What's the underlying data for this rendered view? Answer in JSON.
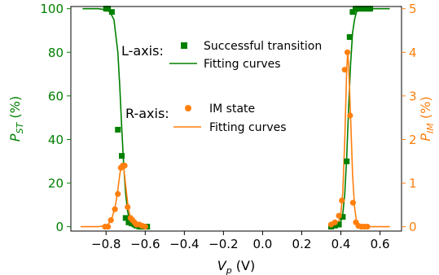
{
  "chart_data": {
    "type": "scatter",
    "x": {
      "label_var": "V",
      "label_sub": "p",
      "label_unit": " (V)",
      "range": [
        -0.98,
        0.71
      ],
      "ticks": [
        -0.8,
        -0.6,
        -0.4,
        -0.2,
        0.0,
        0.2,
        0.4,
        0.6
      ],
      "tick_labels": [
        "−0.8",
        "−0.6",
        "−0.4",
        "−0.2",
        "0.0",
        "0.2",
        "0.4",
        "0.6"
      ]
    },
    "y_left": {
      "label_var": "P",
      "label_sub": "ST",
      "label_unit": " (%)",
      "range": [
        -2,
        101
      ],
      "ticks": [
        0,
        20,
        40,
        60,
        80,
        100
      ],
      "tick_labels": [
        "0",
        "20",
        "40",
        "60",
        "80",
        "100"
      ],
      "color": "#008000"
    },
    "y_right": {
      "label_var": "P",
      "label_sub": "IM",
      "label_unit": " (%)",
      "range": [
        -0.1,
        5.05
      ],
      "ticks": [
        0,
        1,
        2,
        3,
        4,
        5
      ],
      "tick_labels": [
        "0",
        "1",
        "2",
        "3",
        "4",
        "5"
      ],
      "color": "#ff7f0e"
    },
    "legend_groups": [
      {
        "heading": "L-axis:",
        "position": "upper-center-left",
        "entries": [
          {
            "label": "Successful transition",
            "marker": "square",
            "color": "#008000"
          },
          {
            "label": "Fitting curves",
            "marker": "line",
            "color": "#008000"
          }
        ]
      },
      {
        "heading": "R-axis:",
        "position": "center-left",
        "entries": [
          {
            "label": "IM state",
            "marker": "circle",
            "color": "#ff7f0e"
          },
          {
            "label": "Fitting curves",
            "marker": "line",
            "color": "#ff7f0e"
          }
        ]
      }
    ],
    "series": [
      {
        "name": "Successful transition",
        "axis": "left",
        "marker": "square",
        "color": "#008000",
        "x": [
          -0.8,
          -0.79,
          -0.77,
          -0.74,
          -0.72,
          -0.7,
          -0.685,
          -0.67,
          -0.655,
          -0.645,
          -0.63,
          -0.615,
          -0.6,
          -0.59,
          0.35,
          0.37,
          0.39,
          0.41,
          0.43,
          0.445,
          0.46,
          0.475,
          0.49,
          0.505,
          0.52,
          0.54,
          0.55
        ],
        "y": [
          100,
          100,
          98.5,
          44.5,
          32.5,
          4,
          2,
          1.5,
          1,
          0.5,
          0,
          0,
          0,
          0,
          0,
          0.5,
          1,
          4.5,
          30,
          87,
          98.5,
          100,
          100,
          100,
          100,
          100,
          100
        ]
      },
      {
        "name": "Fitting curves",
        "axis": "left",
        "marker": "line",
        "color": "#008000",
        "x": [
          -0.92,
          -0.84,
          -0.8,
          -0.78,
          -0.76,
          -0.74,
          -0.73,
          -0.72,
          -0.71,
          -0.7,
          -0.69,
          -0.68,
          -0.66,
          -0.63,
          -0.59,
          0.35,
          0.37,
          0.39,
          0.4,
          0.41,
          0.42,
          0.43,
          0.44,
          0.45,
          0.46,
          0.47,
          0.48,
          0.5,
          0.55,
          0.65
        ],
        "y": [
          100,
          100,
          99.5,
          98.5,
          95,
          80,
          64,
          45,
          28,
          15,
          7,
          3.5,
          1,
          0.2,
          0,
          0,
          0.3,
          1,
          2.5,
          6,
          15,
          32,
          55,
          75,
          89,
          95,
          98.5,
          99.8,
          100,
          100
        ]
      },
      {
        "name": "IM state",
        "axis": "right",
        "marker": "circle",
        "color": "#ff7f0e",
        "x": [
          -0.805,
          -0.79,
          -0.775,
          -0.755,
          -0.74,
          -0.725,
          -0.715,
          -0.705,
          -0.69,
          -0.675,
          -0.665,
          -0.655,
          -0.645,
          -0.63,
          -0.615,
          -0.6,
          0.35,
          0.37,
          0.39,
          0.405,
          0.42,
          0.433,
          0.447,
          0.462,
          0.477,
          0.49,
          0.505,
          0.52,
          0.535
        ],
        "y": [
          0.0,
          0.0,
          0.15,
          0.4,
          0.75,
          1.35,
          1.4,
          1.4,
          0.45,
          0.2,
          0.15,
          0.1,
          0.05,
          0.05,
          0.02,
          0.0,
          0.05,
          0.1,
          0.25,
          0.6,
          3.6,
          4.0,
          2.55,
          0.55,
          0.1,
          0.02,
          0.0,
          0.0,
          0.0
        ]
      },
      {
        "name": "Fitting curves",
        "axis": "right",
        "marker": "line",
        "color": "#ff7f0e",
        "x": [
          -0.93,
          -0.84,
          -0.8,
          -0.78,
          -0.77,
          -0.76,
          -0.75,
          -0.74,
          -0.73,
          -0.72,
          -0.71,
          -0.7,
          -0.69,
          -0.68,
          -0.67,
          -0.66,
          -0.64,
          -0.6,
          0.35,
          0.37,
          0.39,
          0.4,
          0.41,
          0.42,
          0.43,
          0.435,
          0.44,
          0.45,
          0.46,
          0.47,
          0.48,
          0.5,
          0.55,
          0.65
        ],
        "y": [
          0.0,
          0.0,
          0.02,
          0.1,
          0.2,
          0.35,
          0.55,
          0.85,
          1.2,
          1.45,
          1.35,
          0.95,
          0.55,
          0.28,
          0.12,
          0.05,
          0.01,
          0.0,
          0.0,
          0.02,
          0.12,
          0.3,
          0.8,
          2.0,
          3.6,
          4.0,
          3.7,
          2.5,
          1.2,
          0.45,
          0.12,
          0.01,
          0.0,
          0.0
        ]
      }
    ]
  }
}
